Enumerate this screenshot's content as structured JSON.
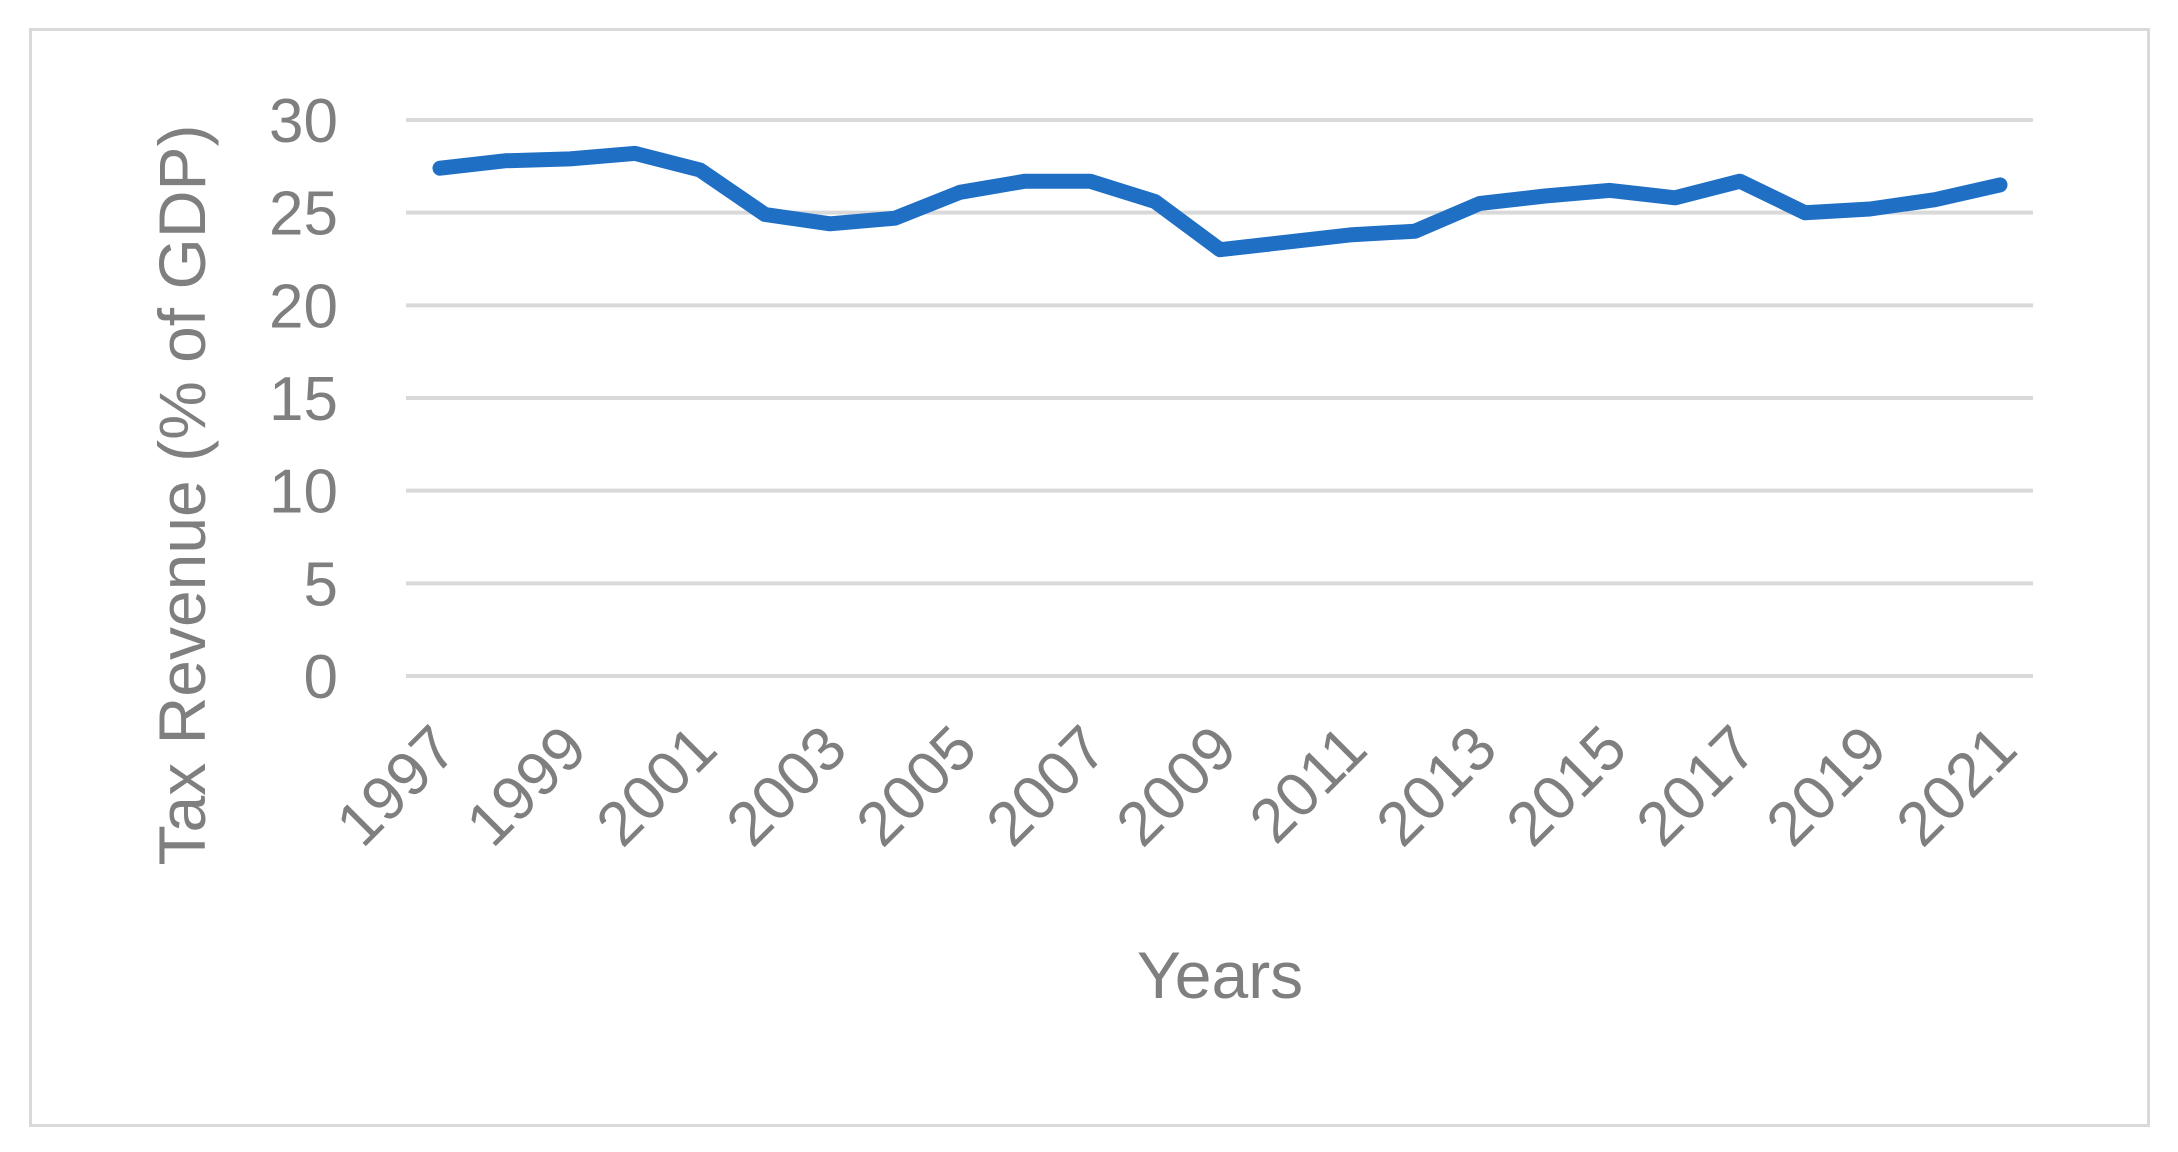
{
  "chart_data": {
    "type": "line",
    "xlabel": "Years",
    "ylabel": "Tax Revenue (% of GDP)",
    "x": [
      1997,
      1998,
      1999,
      2000,
      2001,
      2002,
      2003,
      2004,
      2005,
      2006,
      2007,
      2008,
      2009,
      2010,
      2011,
      2012,
      2013,
      2014,
      2015,
      2016,
      2017,
      2018,
      2019,
      2020,
      2021
    ],
    "x_tick_labels": [
      "1997",
      "1999",
      "2001",
      "2003",
      "2005",
      "2007",
      "2009",
      "2011",
      "2013",
      "2015",
      "2017",
      "2019",
      "2021"
    ],
    "y_tick_labels": [
      "0",
      "5",
      "10",
      "15",
      "20",
      "25",
      "30"
    ],
    "ylim": [
      0,
      30
    ],
    "grid": true,
    "legend": "none",
    "series": [
      {
        "values": [
          27.4,
          27.8,
          27.9,
          28.2,
          27.3,
          24.9,
          24.4,
          24.7,
          26.1,
          26.7,
          26.7,
          25.6,
          23.0,
          23.4,
          23.8,
          24.0,
          25.5,
          25.9,
          26.2,
          25.8,
          26.7,
          25.0,
          25.2,
          25.7,
          26.5
        ],
        "color": "#1f6fc5"
      }
    ]
  }
}
